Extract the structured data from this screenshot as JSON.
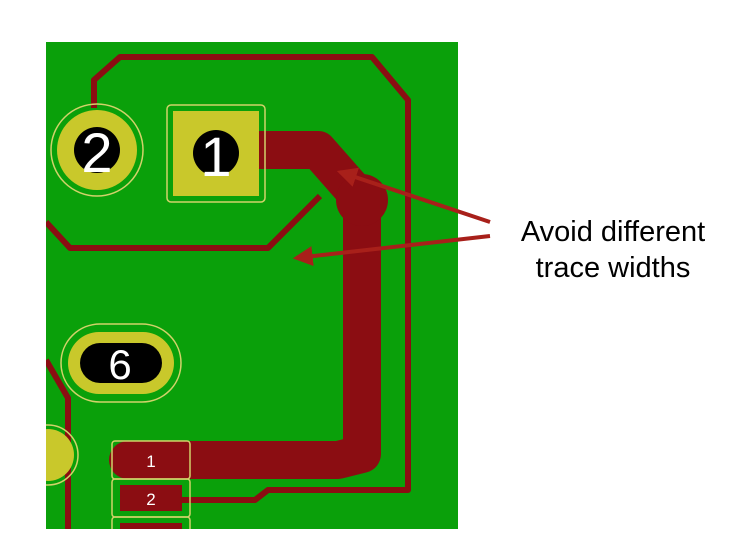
{
  "pcb": {
    "colors": {
      "board": "#0aa00a",
      "trace": "#8b0d12",
      "pad": "#c9c82b",
      "hole": "#000000",
      "silkscreen": "#d2d26a",
      "annotation_arrow": "#a8201a"
    },
    "through_hole_pads": [
      {
        "id": "pad-2",
        "label": "2",
        "shape": "round"
      },
      {
        "id": "pad-1",
        "label": "1",
        "shape": "square"
      },
      {
        "id": "pad-6",
        "label": "6",
        "shape": "oval"
      }
    ],
    "smd_pads": [
      {
        "id": "smd-1",
        "label": "1"
      },
      {
        "id": "smd-2",
        "label": "2"
      }
    ]
  },
  "annotation": {
    "line1": "Avoid different",
    "line2": "trace widths"
  }
}
